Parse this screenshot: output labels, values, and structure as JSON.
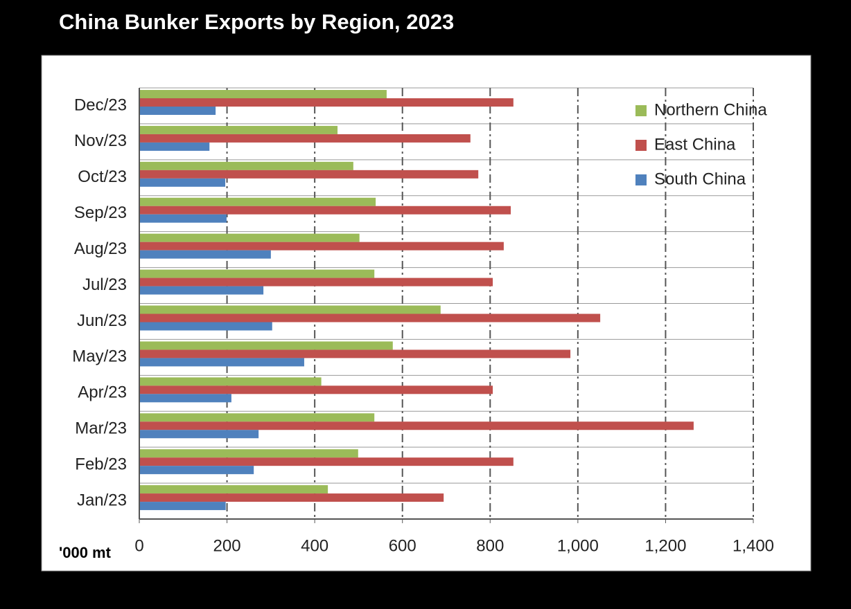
{
  "chart_data": {
    "type": "bar",
    "orientation": "horizontal",
    "title": "China Bunker Exports by Region, 2023",
    "x_label": "'000 mt",
    "categories": [
      "Jan/23",
      "Feb/23",
      "Mar/23",
      "Apr/23",
      "May/23",
      "Jun/23",
      "Jul/23",
      "Aug/23",
      "Sep/23",
      "Oct/23",
      "Nov/23",
      "Dec/23"
    ],
    "series": [
      {
        "name": "Northern China",
        "color": "#9bbb59",
        "values": [
          430,
          499,
          536,
          415,
          578,
          687,
          536,
          502,
          539,
          488,
          452,
          564
        ]
      },
      {
        "name": "East China",
        "color": "#c0504d",
        "values": [
          694,
          853,
          1264,
          806,
          983,
          1051,
          806,
          831,
          847,
          773,
          755,
          853
        ]
      },
      {
        "name": "South China",
        "color": "#4f81bd",
        "values": [
          197,
          261,
          272,
          210,
          376,
          303,
          283,
          300,
          199,
          196,
          160,
          174
        ]
      }
    ],
    "xlim": [
      0,
      1400
    ],
    "xticks": [
      0,
      200,
      400,
      600,
      800,
      {
        "value": 1000,
        "label": "1,000"
      },
      {
        "value": 1200,
        "label": "1,200"
      },
      {
        "value": 1400,
        "label": "1,400"
      }
    ],
    "grid": true,
    "legend": "top-right"
  }
}
